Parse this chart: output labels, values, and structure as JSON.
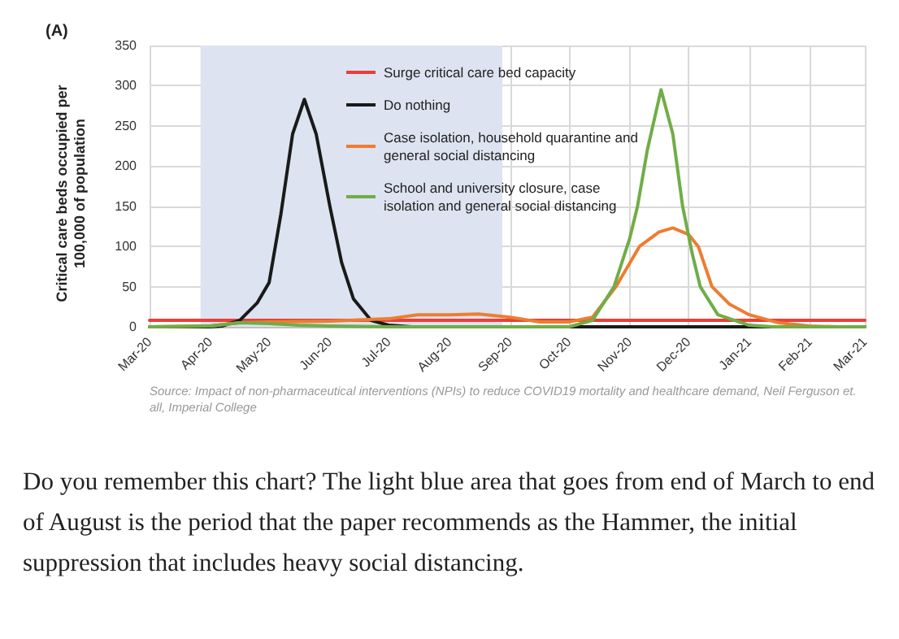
{
  "chart_data": {
    "type": "line",
    "ylabel": "Critical care beds occupied per 100,000 of population",
    "annotations": [
      "(A)",
      "Source: Impact of non-pharmaceutical interventions (NPIs) to reduce COVID19 mortality and healthcare demand, Neil Ferguson et. all, Imperial College",
      "Do you remember this chart? The light blue area that goes from end of March to end of August is the period that the paper recommends as the Hammer, the initial suppression that includes heavy social distancing."
    ],
    "series": [
      {
        "name": "Surge critical care bed capacity",
        "color": "#e8403a",
        "x": [
          "2020-03-01",
          "2021-03-01"
        ],
        "values": [
          8,
          8
        ]
      },
      {
        "name": "Do nothing",
        "color": "#1a1a1a",
        "x": [
          "2020-03-01",
          "2020-04-01",
          "2020-04-07",
          "2020-04-16",
          "2020-04-25",
          "2020-05-01",
          "2020-05-07",
          "2020-05-13",
          "2020-05-19",
          "2020-05-25",
          "2020-06-01",
          "2020-06-07",
          "2020-06-13",
          "2020-06-22",
          "2020-07-01",
          "2020-07-13",
          "2021-03-01"
        ],
        "values": [
          0,
          0,
          1,
          8,
          30,
          55,
          140,
          240,
          283,
          240,
          150,
          80,
          35,
          8,
          2,
          0,
          0
        ]
      },
      {
        "name": "Case isolation, household quarantine and general social distancing",
        "color": "#ed7d31",
        "x": [
          "2020-03-01",
          "2020-04-01",
          "2020-04-16",
          "2020-05-01",
          "2020-06-01",
          "2020-07-01",
          "2020-07-16",
          "2020-08-01",
          "2020-08-16",
          "2020-09-01",
          "2020-09-16",
          "2020-10-01",
          "2020-10-13",
          "2020-10-25",
          "2020-11-06",
          "2020-11-16",
          "2020-11-23",
          "2020-12-01",
          "2020-12-06",
          "2020-12-13",
          "2020-12-22",
          "2021-01-01",
          "2021-01-16",
          "2021-02-01",
          "2021-02-15",
          "2021-03-01"
        ],
        "values": [
          0,
          1,
          5,
          6,
          7,
          10,
          15,
          15,
          16,
          12,
          6,
          6,
          12,
          50,
          100,
          118,
          123,
          115,
          100,
          50,
          28,
          15,
          5,
          1,
          0,
          0
        ]
      },
      {
        "name": "School and university closure, case isolation and general social distancing",
        "color": "#70ad47",
        "x": [
          "2020-03-01",
          "2020-04-01",
          "2020-04-16",
          "2020-05-01",
          "2020-05-16",
          "2020-06-01",
          "2020-07-01",
          "2020-09-01",
          "2020-10-01",
          "2020-10-13",
          "2020-10-24",
          "2020-11-01",
          "2020-11-05",
          "2020-11-10",
          "2020-11-17",
          "2020-11-23",
          "2020-11-28",
          "2020-12-03",
          "2020-12-07",
          "2020-12-16",
          "2021-01-01",
          "2021-01-13",
          "2021-02-01",
          "2021-03-01"
        ],
        "values": [
          0,
          1,
          5,
          4,
          2,
          1,
          0,
          0,
          0,
          8,
          50,
          110,
          150,
          220,
          295,
          240,
          150,
          90,
          50,
          15,
          2,
          0,
          0,
          0
        ]
      }
    ],
    "xlim": [
      "2020-03",
      "2021-03"
    ],
    "xticks": [
      {
        "value": "2020-03",
        "label": "Mar-20"
      },
      {
        "value": "2020-04",
        "label": "Apr-20"
      },
      {
        "value": "2020-05",
        "label": "May-20"
      },
      {
        "value": "2020-06",
        "label": "Jun-20"
      },
      {
        "value": "2020-07",
        "label": "Jul-20"
      },
      {
        "value": "2020-08",
        "label": "Aug-20"
      },
      {
        "value": "2020-09",
        "label": "Sep-20"
      },
      {
        "value": "2020-10",
        "label": "Oct-20"
      },
      {
        "value": "2020-11",
        "label": "Nov-20"
      },
      {
        "value": "2020-12",
        "label": "Dec-20"
      },
      {
        "value": "2021-01",
        "label": "Jan-21"
      },
      {
        "value": "2021-02",
        "label": "Feb-21"
      },
      {
        "value": "2021-03",
        "label": "Mar-21"
      }
    ],
    "ylim": [
      0,
      350
    ],
    "yticks": [
      0,
      50,
      100,
      150,
      200,
      250,
      300,
      350
    ],
    "bands": [
      {
        "axis": "x",
        "from": "2020-03-27",
        "to": "2020-08-28",
        "color": "#dde3f0"
      }
    ],
    "grid": true,
    "legend": "top",
    "marker": "none",
    "line_style": "solid"
  }
}
